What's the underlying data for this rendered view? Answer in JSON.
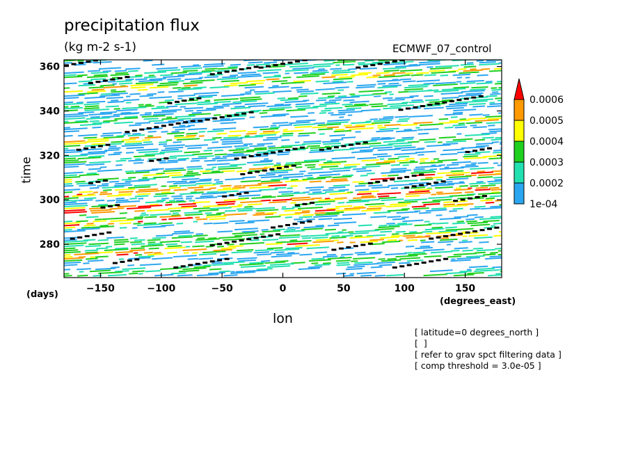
{
  "chart_data": {
    "type": "heatmap",
    "title": "precipitation flux",
    "units": "(kg m-2 s-1)",
    "run_label": "ECMWF_07_control",
    "xlabel": "lon",
    "xunit": "(degrees_east)",
    "ylabel": "time",
    "yunit": "(days)",
    "xlim": [
      -180,
      180
    ],
    "ylim": [
      265,
      363
    ],
    "x_ticks": [
      -150,
      -100,
      -50,
      0,
      50,
      100,
      150
    ],
    "x_tick_labels": [
      "−150",
      "−100",
      "−50",
      "0",
      "50",
      "100",
      "150"
    ],
    "y_ticks": [
      280,
      300,
      320,
      340,
      360
    ],
    "y_tick_labels": [
      "280",
      "300",
      "320",
      "340",
      "360"
    ],
    "colorbar": {
      "levels": [
        0.0001,
        0.0002,
        0.0003,
        0.0004,
        0.0005,
        0.0006
      ],
      "labels": [
        "1e-04",
        "0.0002",
        "0.0003",
        "0.0004",
        "0.0005",
        "0.0006"
      ],
      "colors": [
        "#2aa6f0",
        "#22e0b0",
        "#1fd01f",
        "#ffff00",
        "#ff9900",
        "#ff0000"
      ],
      "extend": "max"
    },
    "pattern": "eastward-propagating bands of precipitation flux; black dashed markers indicate filtered wave tracks"
  },
  "notes": [
    "[ latitude=0 degrees_north ]",
    "[  ]",
    "[ refer to grav spct filtering data ]",
    "[ comp threshold = 3.0e-05 ]"
  ]
}
